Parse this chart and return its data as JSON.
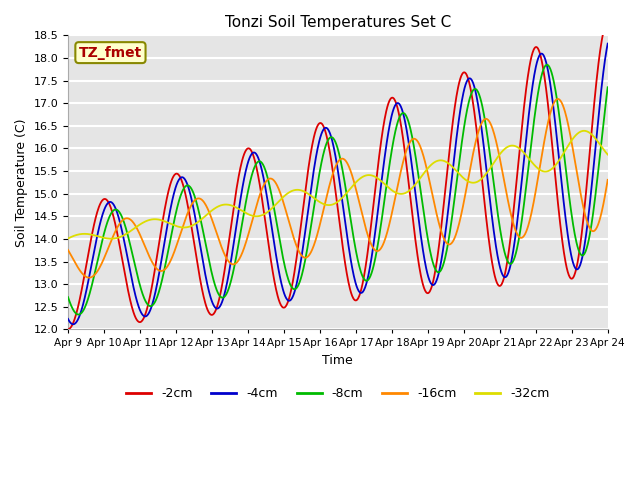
{
  "title": "Tonzi Soil Temperatures Set C",
  "xlabel": "Time",
  "ylabel": "Soil Temperature (C)",
  "ylim": [
    12.0,
    18.5
  ],
  "yticks": [
    12.0,
    12.5,
    13.0,
    13.5,
    14.0,
    14.5,
    15.0,
    15.5,
    16.0,
    16.5,
    17.0,
    17.5,
    18.0,
    18.5
  ],
  "xtick_labels": [
    "Apr 9",
    "Apr 10",
    "Apr 11",
    "Apr 12",
    "Apr 13",
    "Apr 14",
    "Apr 15",
    "Apr 16",
    "Apr 17",
    "Apr 18",
    "Apr 19",
    "Apr 20",
    "Apr 21",
    "Apr 22",
    "Apr 23",
    "Apr 24"
  ],
  "bg_color": "#e5e5e5",
  "grid_color": "#ffffff",
  "series": {
    "neg2cm": {
      "color": "#dd0000",
      "label": "-2cm"
    },
    "neg4cm": {
      "color": "#0000cc",
      "label": "-4cm"
    },
    "neg8cm": {
      "color": "#00bb00",
      "label": "-8cm"
    },
    "neg16cm": {
      "color": "#ff8800",
      "label": "-16cm"
    },
    "neg32cm": {
      "color": "#dddd00",
      "label": "-32cm"
    }
  },
  "annotation": {
    "text": "TZ_fmet",
    "color": "#aa0000",
    "bg": "#ffffcc",
    "edgecolor": "#888800"
  },
  "period": 2.0,
  "n_points": 1000,
  "total_days": 15
}
